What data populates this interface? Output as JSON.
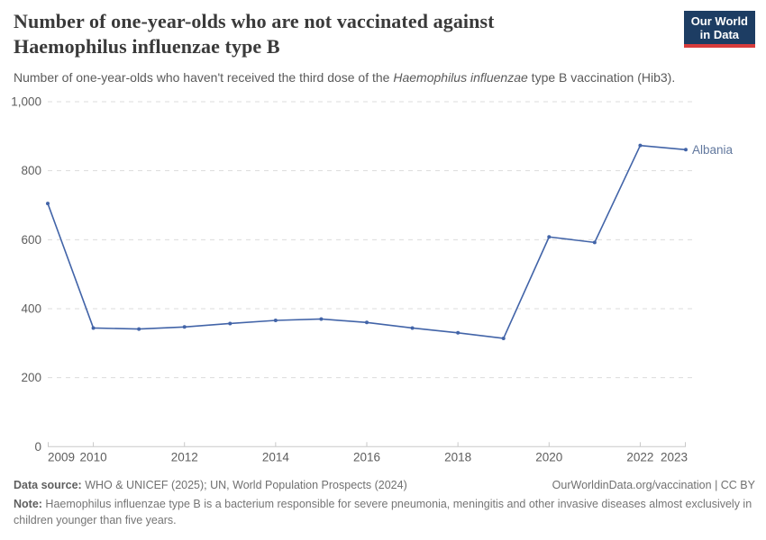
{
  "header": {
    "title": "Number of one-year-olds who are not vaccinated against Haemophilus influenzae type B",
    "subtitle_prefix": "Number of one-year-olds who haven't received the third dose of the ",
    "subtitle_italic": "Haemophilus influenzae",
    "subtitle_suffix": " type B vaccination (Hib3).",
    "logo": {
      "line1": "Our World",
      "line2": "in Data",
      "bg_color": "#1d3d63",
      "accent_color": "#d73c3c"
    }
  },
  "chart_data": {
    "type": "line",
    "title": "Number of one-year-olds who are not vaccinated against Haemophilus influenzae type B",
    "subtitle": "Number of one-year-olds who haven't received the third dose of the Haemophilus influenzae type B vaccination (Hib3).",
    "x": [
      2009,
      2010,
      2011,
      2012,
      2013,
      2014,
      2015,
      2016,
      2017,
      2018,
      2019,
      2020,
      2021,
      2022,
      2023
    ],
    "series": [
      {
        "name": "Albania",
        "color": "#4264a8",
        "label_color": "#62789e",
        "values": [
          705,
          344,
          341,
          347,
          357,
          366,
          370,
          360,
          344,
          330,
          314,
          608,
          592,
          873,
          861
        ]
      }
    ],
    "x_ticks": [
      2009,
      2010,
      2012,
      2014,
      2016,
      2018,
      2020,
      2022,
      2023
    ],
    "y_ticks": [
      0,
      200,
      400,
      600,
      800,
      1000
    ],
    "xlim": [
      2009,
      2023
    ],
    "ylim": [
      0,
      1000
    ],
    "grid": "horizontal-dashed",
    "legend_position": "line-end-label",
    "colors": {
      "grid": "#dcdcdc",
      "axis": "#c9c9c9",
      "tick_label": "#5e5e5e"
    }
  },
  "footer": {
    "datasource_label": "Data source:",
    "datasource_text": " WHO & UNICEF (2025); UN, World Population Prospects (2024)",
    "rights": "OurWorldinData.org/vaccination | CC BY",
    "note_label": "Note:",
    "note_text": " Haemophilus influenzae type B is a bacterium responsible for severe pneumonia, meningitis and other invasive diseases almost exclusively in children younger than five years."
  }
}
